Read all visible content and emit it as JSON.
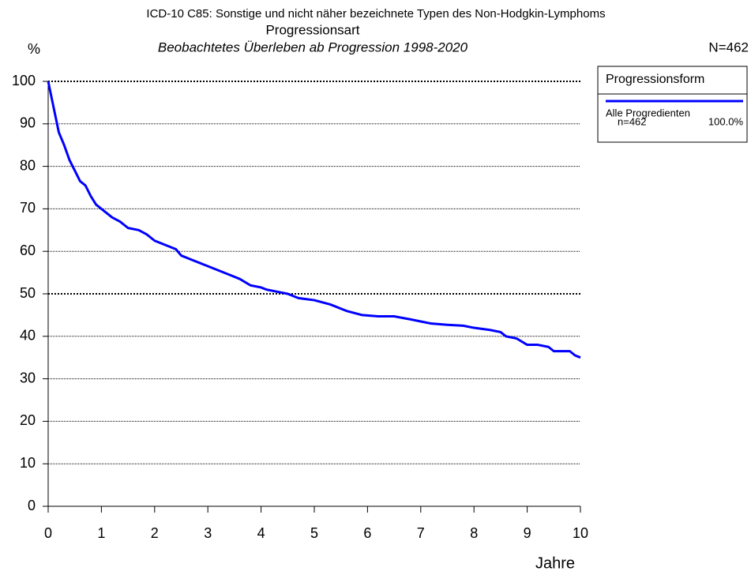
{
  "chart_data": {
    "type": "line",
    "title": "ICD-10 C85: Sonstige und nicht näher bezeichnete Typen des Non-Hodgkin-Lymphoms",
    "subtitle": "Progressionsart",
    "caption": "Beobachtetes Überleben ab Progression 1998-2020",
    "y_label": "%",
    "x_label": "Jahre",
    "n_label": "N=462",
    "legend_title": "Progressionsform",
    "legend_position": "right",
    "xlim": [
      0,
      10
    ],
    "ylim": [
      0,
      100
    ],
    "xticks": [
      0,
      1,
      2,
      3,
      4,
      5,
      6,
      7,
      8,
      9,
      10
    ],
    "yticks": [
      0,
      10,
      20,
      30,
      40,
      50,
      60,
      70,
      80,
      90,
      100
    ],
    "grid": true,
    "grid_bold": [
      50,
      100
    ],
    "series": [
      {
        "name": "Alle Progredienten",
        "n_label": "n=462",
        "share_label": "100.0%",
        "color": "#0000ff",
        "x": [
          0,
          0.05,
          0.1,
          0.15,
          0.2,
          0.3,
          0.4,
          0.5,
          0.6,
          0.7,
          0.8,
          0.9,
          1.0,
          1.1,
          1.2,
          1.35,
          1.5,
          1.7,
          1.85,
          2.0,
          2.2,
          2.4,
          2.5,
          2.7,
          2.9,
          3.0,
          3.2,
          3.4,
          3.6,
          3.8,
          4.0,
          4.1,
          4.3,
          4.5,
          4.7,
          5.0,
          5.3,
          5.6,
          5.9,
          6.2,
          6.5,
          6.8,
          7.0,
          7.2,
          7.5,
          7.8,
          8.0,
          8.3,
          8.5,
          8.6,
          8.8,
          9.0,
          9.2,
          9.4,
          9.5,
          9.8,
          9.9,
          10.0
        ],
        "values": [
          100,
          97,
          94,
          91,
          88,
          85,
          81.5,
          79,
          76.5,
          75.5,
          73,
          71,
          70,
          69,
          68,
          67,
          65.5,
          65,
          64,
          62.5,
          61.5,
          60.5,
          59,
          58,
          57,
          56.5,
          55.5,
          54.5,
          53.5,
          52,
          51.5,
          51,
          50.5,
          50,
          49,
          48.5,
          47.5,
          46,
          45,
          44.7,
          44.7,
          44,
          43.5,
          43,
          42.7,
          42.5,
          42,
          41.5,
          41,
          40,
          39.5,
          38,
          38,
          37.5,
          36.5,
          36.5,
          35.5,
          35
        ]
      }
    ]
  }
}
